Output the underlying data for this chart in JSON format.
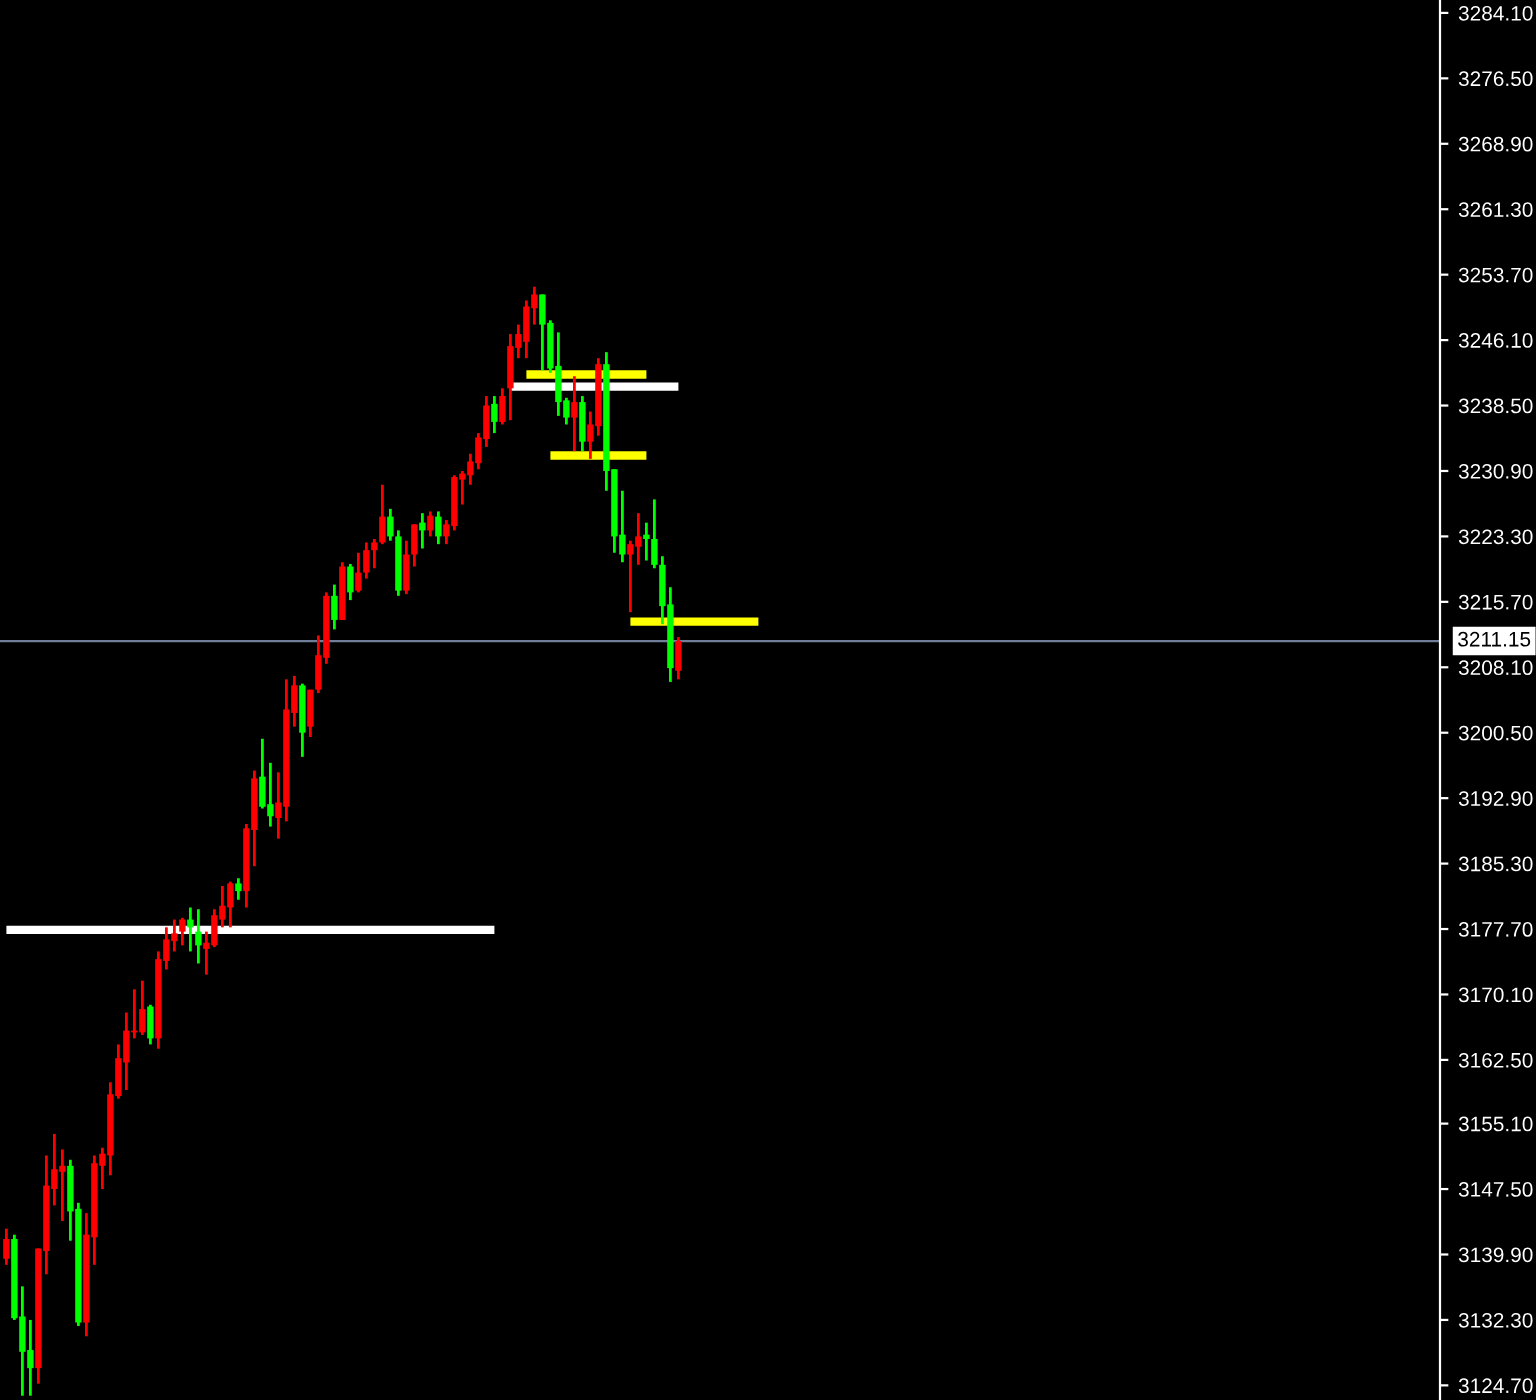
{
  "chart_data": {
    "type": "candlestick",
    "categories": [
      null,
      null,
      null,
      null,
      null,
      null,
      null,
      null,
      null,
      null,
      null,
      null,
      null,
      null,
      null,
      null,
      null,
      null,
      null,
      null,
      null,
      null,
      null,
      null,
      null,
      null,
      null,
      null,
      null,
      null,
      null,
      null,
      null,
      null,
      null,
      null,
      null,
      null,
      null,
      null,
      null,
      null,
      null,
      null,
      null,
      null,
      null,
      null,
      null,
      null,
      null,
      null,
      null,
      null,
      null,
      null,
      null,
      null,
      null,
      null,
      null,
      null,
      null,
      null,
      null,
      null,
      null,
      null,
      null,
      null,
      null,
      null,
      null,
      null,
      null,
      null,
      null,
      null,
      null,
      null,
      null,
      null,
      null,
      null,
      null,
      null,
      null,
      null,
      null,
      null,
      null,
      null,
      null,
      null,
      null,
      null,
      null,
      null,
      null,
      null,
      null,
      null,
      null,
      null,
      null,
      null,
      null,
      null,
      null,
      null,
      null,
      null,
      null,
      null,
      null,
      null,
      null,
      null,
      null,
      null,
      null,
      null,
      null,
      null,
      null,
      null,
      null,
      null,
      null,
      null,
      null,
      null,
      null,
      null,
      null,
      null,
      null,
      null,
      null,
      null,
      null,
      null,
      null,
      null,
      null,
      null,
      null,
      null,
      null,
      null,
      null,
      null,
      null,
      null,
      null,
      null,
      null,
      null,
      null,
      null,
      null,
      null,
      null,
      null,
      null,
      null,
      null,
      null,
      null,
      null,
      null,
      null,
      null,
      null,
      null,
      null,
      null,
      null,
      null,
      null
    ],
    "ohlc": [
      [
        3139.4,
        3142.9,
        3138.7,
        3141.7
      ],
      [
        3141.7,
        3142.2,
        3132.3,
        3132.5
      ],
      [
        3132.7,
        3136.2,
        3123.5,
        3128.6
      ],
      [
        3128.8,
        3132.3,
        3123.5,
        3126.7
      ],
      [
        3126.7,
        3140.6,
        3124.9,
        3140.6
      ],
      [
        3140.3,
        3151.4,
        3137.6,
        3147.9
      ],
      [
        3147.5,
        3153.9,
        3145.6,
        3149.8
      ],
      [
        3149.5,
        3152.1,
        3143.8,
        3150.2
      ],
      [
        3150.2,
        3150.9,
        3141.5,
        3144.9
      ],
      [
        3145.2,
        3145.9,
        3131.6,
        3132.0
      ],
      [
        3132.0,
        3144.7,
        3130.4,
        3142.2
      ],
      [
        3141.9,
        3151.4,
        3138.7,
        3150.5
      ],
      [
        3150.2,
        3152.3,
        3147.5,
        3151.6
      ],
      [
        3151.4,
        3159.9,
        3149.1,
        3158.5
      ],
      [
        3158.3,
        3164.3,
        3158.0,
        3162.7
      ],
      [
        3162.2,
        3168.0,
        3159.0,
        3165.9
      ],
      [
        3165.7,
        3170.7,
        3165.0,
        3165.9
      ],
      [
        3165.7,
        3171.7,
        3165.4,
        3168.4
      ],
      [
        3168.7,
        3168.9,
        3164.3,
        3165.0
      ],
      [
        3165.0,
        3175.1,
        3163.8,
        3174.2
      ],
      [
        3174.0,
        3177.9,
        3173.0,
        3176.5
      ],
      [
        3176.3,
        3178.8,
        3175.1,
        3177.2
      ],
      [
        3177.4,
        3179.0,
        3175.8,
        3178.8
      ],
      [
        3178.8,
        3180.2,
        3175.1,
        3177.9
      ],
      [
        3177.4,
        3180.0,
        3173.7,
        3175.8
      ],
      [
        3175.4,
        3177.4,
        3172.4,
        3176.1
      ],
      [
        3175.8,
        3180.0,
        3175.6,
        3179.3
      ],
      [
        3178.8,
        3182.7,
        3177.9,
        3180.4
      ],
      [
        3180.2,
        3183.2,
        3177.9,
        3183.0
      ],
      [
        3183.0,
        3183.6,
        3181.1,
        3182.1
      ],
      [
        3182.1,
        3189.9,
        3180.2,
        3189.4
      ],
      [
        3189.2,
        3196.1,
        3185.0,
        3195.2
      ],
      [
        3195.4,
        3199.8,
        3191.7,
        3191.9
      ],
      [
        3192.2,
        3197.0,
        3189.6,
        3190.8
      ],
      [
        3190.6,
        3195.9,
        3188.2,
        3192.4
      ],
      [
        3191.9,
        3206.7,
        3190.2,
        3203.2
      ],
      [
        3202.8,
        3207.1,
        3201.2,
        3206.0
      ],
      [
        3206.0,
        3206.2,
        3197.7,
        3200.5
      ],
      [
        3201.2,
        3205.5,
        3200.0,
        3205.5
      ],
      [
        3205.5,
        3211.8,
        3205.1,
        3209.5
      ],
      [
        3209.2,
        3216.8,
        3208.5,
        3216.4
      ],
      [
        3216.4,
        3217.7,
        3212.5,
        3213.6
      ],
      [
        3213.6,
        3220.3,
        3213.6,
        3219.8
      ],
      [
        3219.8,
        3220.1,
        3215.9,
        3216.8
      ],
      [
        3217.0,
        3221.4,
        3216.8,
        3219.1
      ],
      [
        3219.1,
        3222.6,
        3218.4,
        3221.7
      ],
      [
        3221.7,
        3223.0,
        3219.6,
        3222.6
      ],
      [
        3222.6,
        3229.3,
        3222.4,
        3225.6
      ],
      [
        3225.6,
        3226.5,
        3222.8,
        3223.3
      ],
      [
        3223.3,
        3224.0,
        3216.4,
        3217.0
      ],
      [
        3217.0,
        3222.8,
        3216.6,
        3221.2
      ],
      [
        3221.2,
        3224.7,
        3219.8,
        3224.7
      ],
      [
        3224.9,
        3226.0,
        3221.9,
        3224.0
      ],
      [
        3224.0,
        3226.2,
        3223.3,
        3225.7
      ],
      [
        3225.6,
        3226.2,
        3222.4,
        3223.3
      ],
      [
        3223.3,
        3225.2,
        3222.4,
        3224.7
      ],
      [
        3224.5,
        3230.4,
        3224.0,
        3230.2
      ],
      [
        3229.9,
        3230.9,
        3227.0,
        3230.6
      ],
      [
        3230.4,
        3232.9,
        3229.3,
        3232.0
      ],
      [
        3231.8,
        3235.3,
        3231.1,
        3234.8
      ],
      [
        3234.6,
        3239.6,
        3233.7,
        3238.5
      ],
      [
        3238.7,
        3239.6,
        3235.3,
        3236.6
      ],
      [
        3236.6,
        3240.5,
        3236.3,
        3239.6
      ],
      [
        3240.5,
        3246.8,
        3236.8,
        3245.4
      ],
      [
        3245.2,
        3247.9,
        3244.0,
        3246.8
      ],
      [
        3245.9,
        3250.7,
        3244.0,
        3250.0
      ],
      [
        3249.8,
        3252.3,
        3247.9,
        3251.4
      ],
      [
        3251.4,
        3251.4,
        3242.6,
        3247.9
      ],
      [
        3248.1,
        3248.4,
        3242.3,
        3242.8
      ],
      [
        3243.1,
        3247.0,
        3237.3,
        3238.9
      ],
      [
        3239.1,
        3239.4,
        3236.3,
        3237.1
      ],
      [
        3237.1,
        3241.9,
        3233.2,
        3238.9
      ],
      [
        3238.9,
        3239.6,
        3233.2,
        3234.3
      ],
      [
        3234.3,
        3237.8,
        3232.3,
        3236.3
      ],
      [
        3236.1,
        3244.0,
        3235.0,
        3243.3
      ],
      [
        3243.3,
        3244.7,
        3228.6,
        3230.9
      ],
      [
        3231.1,
        3231.1,
        3221.4,
        3223.3
      ],
      [
        3223.5,
        3228.6,
        3220.3,
        3221.2
      ],
      [
        3221.2,
        3222.8,
        3214.5,
        3222.4
      ],
      [
        3222.1,
        3226.0,
        3220.0,
        3223.3
      ],
      [
        3223.5,
        3224.9,
        3220.5,
        3223.0
      ],
      [
        3223.0,
        3227.6,
        3219.6,
        3220.0
      ],
      [
        3220.0,
        3221.0,
        3213.1,
        3215.2
      ],
      [
        3215.4,
        3217.4,
        3206.4,
        3208.0
      ],
      [
        3207.7,
        3211.6,
        3206.7,
        3211.15
      ],
      null,
      null,
      null,
      null,
      null,
      null,
      null,
      null,
      null,
      null,
      null,
      null,
      null,
      null,
      null,
      null,
      null,
      null,
      null,
      null,
      null,
      null,
      null,
      null,
      null,
      null,
      null,
      null,
      null,
      null,
      null,
      null,
      null,
      null,
      null,
      null,
      null,
      null,
      null,
      null,
      null,
      null,
      null,
      null,
      null,
      null,
      null,
      null,
      null,
      null,
      null,
      null,
      null,
      null,
      null,
      null,
      null,
      null,
      null,
      null,
      null,
      null,
      null,
      null,
      null,
      null,
      null,
      null,
      null,
      null,
      null,
      null,
      null,
      null,
      null,
      null,
      null,
      null,
      null,
      null,
      null,
      null,
      null,
      null,
      null,
      null,
      null,
      null,
      null,
      null,
      null,
      null,
      null,
      null,
      null
    ],
    "colors": [
      "#ff0000",
      "#00ff00",
      "#00ff00",
      "#00ff00",
      "#ff0000",
      "#ff0000",
      "#ff0000",
      "#ff0000",
      "#00ff00",
      "#00ff00",
      "#ff0000",
      "#ff0000",
      "#ff0000",
      "#ff0000",
      "#ff0000",
      "#ff0000",
      "#ff0000",
      "#ff0000",
      "#00ff00",
      "#ff0000",
      "#ff0000",
      "#ff0000",
      "#ff0000",
      "#00ff00",
      "#00ff00",
      "#ff0000",
      "#ff0000",
      "#ff0000",
      "#ff0000",
      "#00ff00",
      "#ff0000",
      "#ff0000",
      "#00ff00",
      "#00ff00",
      "#ff0000",
      "#ff0000",
      "#ff0000",
      "#00ff00",
      "#ff0000",
      "#ff0000",
      "#ff0000",
      "#00ff00",
      "#ff0000",
      "#00ff00",
      "#ff0000",
      "#ff0000",
      "#ff0000",
      "#ff0000",
      "#00ff00",
      "#00ff00",
      "#ff0000",
      "#ff0000",
      "#00ff00",
      "#ff0000",
      "#00ff00",
      "#ff0000",
      "#ff0000",
      "#ff0000",
      "#ff0000",
      "#ff0000",
      "#ff0000",
      "#00ff00",
      "#ff0000",
      "#ff0000",
      "#ff0000",
      "#ff0000",
      "#ff0000",
      "#00ff00",
      "#00ff00",
      "#00ff00",
      "#00ff00",
      "#ff0000",
      "#00ff00",
      "#ff0000",
      "#ff0000",
      "#00ff00",
      "#00ff00",
      "#00ff00",
      "#ff0000",
      "#ff0000",
      "#00ff00",
      "#00ff00",
      "#00ff00",
      "#00ff00",
      "#ff0000",
      null,
      null,
      null,
      null,
      null,
      null,
      null,
      null,
      null,
      null,
      null,
      null,
      null,
      null,
      null,
      null,
      null,
      null,
      null,
      null,
      null,
      null,
      null,
      null,
      null,
      null,
      null,
      null,
      null,
      null,
      null,
      null,
      null,
      null,
      null,
      null,
      null,
      null,
      null,
      null,
      null,
      null,
      null,
      null,
      null,
      null,
      null,
      null,
      null,
      null,
      null,
      null,
      null,
      null,
      null,
      null,
      null,
      null,
      null,
      null,
      null,
      null,
      null,
      null,
      null,
      null,
      null,
      null,
      null,
      null,
      null,
      null,
      null,
      null,
      null,
      null,
      null,
      null,
      null,
      null,
      null,
      null,
      null,
      null,
      null,
      null,
      null,
      null,
      null,
      null,
      null,
      null,
      null,
      null,
      null
    ],
    "series": [
      {
        "type": "line",
        "color": "#ffffff",
        "values": [
          3177.6,
          3177.6,
          3177.6,
          3177.6,
          3177.6,
          3177.6,
          3177.6,
          3177.6,
          3177.6,
          3177.6,
          3177.6,
          3177.6,
          3177.6,
          3177.6,
          3177.6,
          3177.6,
          3177.6,
          3177.6,
          3177.6,
          3177.6,
          3177.6,
          3177.6,
          3177.6,
          3177.6,
          3177.6,
          3177.6,
          3177.6,
          3177.6,
          3177.6,
          3177.6,
          3177.6,
          3177.6,
          3177.6,
          3177.6,
          3177.6,
          3177.6,
          3177.6,
          3177.6,
          3177.6,
          3177.6,
          3177.6,
          3177.6,
          3177.6,
          3177.6,
          3177.6,
          3177.6,
          3177.6,
          3177.6,
          3177.6,
          3177.6,
          3177.6,
          3177.6,
          3177.6,
          3177.6,
          3177.6,
          3177.6,
          3177.6,
          3177.6,
          3177.6,
          3177.6,
          3177.6,
          3177.6,
          null,
          null,
          null,
          null,
          null,
          null,
          null,
          null,
          null,
          null,
          null,
          null,
          null,
          null,
          null,
          null,
          null,
          null,
          null,
          null,
          null,
          null,
          null,
          null,
          null,
          null,
          null,
          null,
          null,
          null,
          null,
          null,
          null,
          null,
          null,
          null,
          null,
          null,
          null,
          null,
          null,
          null,
          null,
          null,
          null,
          null,
          null,
          null,
          null,
          null,
          null,
          null,
          null,
          null,
          null,
          null,
          null,
          null,
          null,
          null,
          null,
          null,
          null,
          null,
          null,
          null,
          null,
          null,
          null,
          null,
          null,
          null,
          null,
          null,
          null,
          null,
          null,
          null,
          null,
          null,
          null,
          null,
          null,
          null,
          null,
          null,
          null,
          null,
          null,
          null,
          null,
          null,
          null,
          null,
          null,
          null,
          null,
          null,
          null,
          null,
          null,
          null,
          null,
          null,
          null,
          null,
          null,
          null,
          null,
          null,
          null,
          null,
          null,
          null,
          null,
          null,
          null,
          null
        ]
      },
      {
        "type": "line",
        "color": "#ffffff",
        "values": [
          null,
          null,
          null,
          null,
          null,
          null,
          null,
          null,
          null,
          null,
          null,
          null,
          null,
          null,
          null,
          null,
          null,
          null,
          null,
          null,
          null,
          null,
          null,
          null,
          null,
          null,
          null,
          null,
          null,
          null,
          null,
          null,
          null,
          null,
          null,
          null,
          null,
          null,
          null,
          null,
          null,
          null,
          null,
          null,
          null,
          null,
          null,
          null,
          null,
          null,
          null,
          null,
          null,
          null,
          null,
          null,
          null,
          null,
          null,
          null,
          null,
          null,
          null,
          3240.7,
          3240.7,
          3240.7,
          3240.7,
          3240.7,
          3240.7,
          3240.7,
          3240.7,
          3240.7,
          3240.7,
          3240.7,
          3240.7,
          3240.7,
          3240.7,
          3240.7,
          3240.7,
          3240.7,
          3240.7,
          3240.7,
          3240.7,
          3240.7,
          3240.7,
          null,
          null,
          null,
          null,
          null,
          null,
          null,
          null,
          null,
          null,
          null,
          null,
          null,
          null,
          null,
          null,
          null,
          null,
          null,
          null,
          null,
          null,
          null,
          null,
          null,
          null,
          null,
          null,
          null,
          null,
          null,
          null,
          null,
          null,
          null,
          null,
          null,
          null,
          null,
          null,
          null,
          null,
          null,
          null,
          null,
          null,
          null,
          null,
          null,
          null,
          null,
          null,
          null,
          null,
          null,
          null,
          null,
          null,
          null,
          null,
          null,
          null,
          null,
          null,
          null,
          null,
          null,
          null,
          null,
          null,
          null,
          null,
          null,
          null,
          null,
          null,
          null,
          null,
          null,
          null,
          null,
          null,
          null,
          null,
          null,
          null,
          null,
          null,
          null,
          null,
          null,
          null,
          null,
          null,
          null
        ]
      },
      {
        "type": "line",
        "color": "#ffff00",
        "values": [
          null,
          null,
          null,
          null,
          null,
          null,
          null,
          null,
          null,
          null,
          null,
          null,
          null,
          null,
          null,
          null,
          null,
          null,
          null,
          null,
          null,
          null,
          null,
          null,
          null,
          null,
          null,
          null,
          null,
          null,
          null,
          null,
          null,
          null,
          null,
          null,
          null,
          null,
          null,
          null,
          null,
          null,
          null,
          null,
          null,
          null,
          null,
          null,
          null,
          null,
          null,
          null,
          null,
          null,
          null,
          null,
          null,
          null,
          null,
          null,
          null,
          null,
          null,
          null,
          null,
          3242.1,
          3242.1,
          3242.1,
          3242.1,
          3242.1,
          3242.1,
          3242.1,
          3242.1,
          3242.1,
          3242.1,
          3242.1,
          3242.1,
          3242.1,
          3242.1,
          3242.1,
          3242.1,
          null,
          null,
          null,
          null,
          null,
          null,
          null,
          null,
          null,
          null,
          null,
          null,
          null,
          null,
          null,
          null,
          null,
          null,
          null,
          null,
          null,
          null,
          null,
          null,
          null,
          null,
          null,
          null,
          null,
          null,
          null,
          null,
          null,
          null,
          null,
          null,
          null,
          null,
          null,
          null,
          null,
          null,
          null,
          null,
          null,
          null,
          null,
          null,
          null,
          null,
          null,
          null,
          null,
          null,
          null,
          null,
          null,
          null,
          null,
          null,
          null,
          null,
          null,
          null,
          null,
          null,
          null,
          null,
          null,
          null,
          null,
          null,
          null,
          null,
          null,
          null,
          null,
          null,
          null,
          null,
          null,
          null,
          null,
          null,
          null,
          null,
          null,
          null,
          null,
          null,
          null,
          null,
          null,
          null,
          null,
          null,
          null,
          null,
          null
        ]
      },
      {
        "type": "line",
        "color": "#ffff00",
        "values": [
          null,
          null,
          null,
          null,
          null,
          null,
          null,
          null,
          null,
          null,
          null,
          null,
          null,
          null,
          null,
          null,
          null,
          null,
          null,
          null,
          null,
          null,
          null,
          null,
          null,
          null,
          null,
          null,
          null,
          null,
          null,
          null,
          null,
          null,
          null,
          null,
          null,
          null,
          null,
          null,
          null,
          null,
          null,
          null,
          null,
          null,
          null,
          null,
          null,
          null,
          null,
          null,
          null,
          null,
          null,
          null,
          null,
          null,
          null,
          null,
          null,
          null,
          null,
          null,
          null,
          null,
          null,
          null,
          3232.7,
          3232.7,
          3232.7,
          3232.7,
          3232.7,
          3232.7,
          3232.7,
          3232.7,
          3232.7,
          3232.7,
          3232.7,
          3232.7,
          3232.7,
          null,
          null,
          null,
          null,
          null,
          null,
          null,
          null,
          null,
          null,
          null,
          null,
          null,
          null,
          null,
          null,
          null,
          null,
          null,
          null,
          null,
          null,
          null,
          null,
          null,
          null,
          null,
          null,
          null,
          null,
          null,
          null,
          null,
          null,
          null,
          null,
          null,
          null,
          null,
          null,
          null,
          null,
          null,
          null,
          null,
          null,
          null,
          null,
          null,
          null,
          null,
          null,
          null,
          null,
          null,
          null,
          null,
          null,
          null,
          null,
          null,
          null,
          null,
          null,
          null,
          null,
          null,
          null,
          null,
          null,
          null,
          null,
          null,
          null,
          null,
          null,
          null,
          null,
          null,
          null,
          null,
          null,
          null,
          null,
          null,
          null,
          null,
          null,
          null,
          null,
          null,
          null,
          null,
          null,
          null,
          null,
          null,
          null,
          null
        ]
      },
      {
        "type": "line",
        "color": "#ffff00",
        "values": [
          null,
          null,
          null,
          null,
          null,
          null,
          null,
          null,
          null,
          null,
          null,
          null,
          null,
          null,
          null,
          null,
          null,
          null,
          null,
          null,
          null,
          null,
          null,
          null,
          null,
          null,
          null,
          null,
          null,
          null,
          null,
          null,
          null,
          null,
          null,
          null,
          null,
          null,
          null,
          null,
          null,
          null,
          null,
          null,
          null,
          null,
          null,
          null,
          null,
          null,
          null,
          null,
          null,
          null,
          null,
          null,
          null,
          null,
          null,
          null,
          null,
          null,
          null,
          null,
          null,
          null,
          null,
          null,
          null,
          null,
          null,
          null,
          null,
          null,
          null,
          null,
          null,
          null,
          3213.4,
          3213.4,
          3213.4,
          3213.4,
          3213.4,
          3213.4,
          3213.4,
          3213.4,
          3213.4,
          3213.4,
          3213.4,
          3213.4,
          3213.4,
          3213.4,
          3213.4,
          3213.4,
          3213.4,
          null,
          null,
          null,
          null,
          null,
          null,
          null,
          null,
          null,
          null,
          null,
          null,
          null,
          null,
          null,
          null,
          null,
          null,
          null,
          null,
          null,
          null,
          null,
          null,
          null,
          null,
          null,
          null,
          null,
          null,
          null,
          null,
          null,
          null,
          null,
          null,
          null,
          null,
          null,
          null,
          null,
          null,
          null,
          null,
          null,
          null,
          null,
          null,
          null,
          null,
          null,
          null,
          null,
          null,
          null,
          null,
          null,
          null,
          null,
          null,
          null,
          null,
          null,
          null,
          null,
          null,
          null,
          null,
          null,
          null,
          null,
          null,
          null,
          null,
          null,
          null,
          null,
          null,
          null,
          null,
          null,
          null,
          null,
          null,
          null
        ]
      }
    ],
    "ref_lines": [
      {
        "axis": "y",
        "value": 3211.15,
        "label": "3211.15",
        "color": "#6f7f99"
      }
    ],
    "ylim": [
      3123.0,
      3285.6
    ],
    "yticks": [
      {
        "value": 3124.7,
        "label": "3124.70"
      },
      {
        "value": 3132.3,
        "label": "3132.30"
      },
      {
        "value": 3139.9,
        "label": "3139.90"
      },
      {
        "value": 3147.5,
        "label": "3147.50"
      },
      {
        "value": 3155.1,
        "label": "3155.10"
      },
      {
        "value": 3162.5,
        "label": "3162.50"
      },
      {
        "value": 3170.1,
        "label": "3170.10"
      },
      {
        "value": 3177.7,
        "label": "3177.70"
      },
      {
        "value": 3185.3,
        "label": "3185.30"
      },
      {
        "value": 3192.9,
        "label": "3192.90"
      },
      {
        "value": 3200.5,
        "label": "3200.50"
      },
      {
        "value": 3208.1,
        "label": "3208.10"
      },
      {
        "value": 3215.7,
        "label": "3215.70"
      },
      {
        "value": 3223.3,
        "label": "3223.30"
      },
      {
        "value": 3230.9,
        "label": "3230.90"
      },
      {
        "value": 3238.5,
        "label": "3238.50"
      },
      {
        "value": 3246.1,
        "label": "3246.10"
      },
      {
        "value": 3253.7,
        "label": "3253.70"
      },
      {
        "value": 3261.3,
        "label": "3261.30"
      },
      {
        "value": 3268.9,
        "label": "3268.90"
      },
      {
        "value": 3276.5,
        "label": "3276.50"
      },
      {
        "value": 3284.1,
        "label": "3284.10"
      }
    ],
    "tick_labels": "y",
    "grid": false,
    "legend": false
  }
}
